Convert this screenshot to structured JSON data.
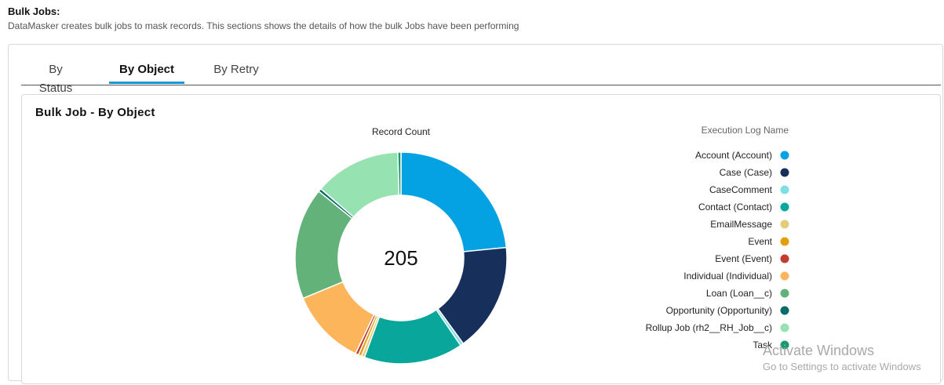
{
  "header": {
    "title": "Bulk Jobs:",
    "description": "DataMasker creates bulk jobs to mask records. This sections shows the details of how the bulk Jobs have been performing"
  },
  "tabs": [
    {
      "label": "By Status",
      "active": false
    },
    {
      "label": "By Object",
      "active": true
    },
    {
      "label": "By Retry",
      "active": false
    }
  ],
  "card": {
    "title": "Bulk Job - By Object"
  },
  "chart_data": {
    "type": "pie",
    "title": "Record Count",
    "center_total": "205",
    "legend_title": "Execution Log Name",
    "legend_position": "right",
    "slices": [
      {
        "label": "Account (Account)",
        "value": 48,
        "color": "#04a2e3"
      },
      {
        "label": "Case (Case)",
        "value": 34,
        "color": "#162f5b"
      },
      {
        "label": "CaseComment",
        "value": 1,
        "color": "#7ddfe1"
      },
      {
        "label": "Contact (Contact)",
        "value": 31,
        "color": "#09a69b"
      },
      {
        "label": "EmailMessage",
        "value": 1,
        "color": "#e3cd79"
      },
      {
        "label": "Event",
        "value": 1,
        "color": "#e39f05"
      },
      {
        "label": "Event (Event)",
        "value": 1,
        "color": "#c13d2f"
      },
      {
        "label": "Individual (Individual)",
        "value": 24,
        "color": "#fcb55b"
      },
      {
        "label": "Loan (Loan__c)",
        "value": 35,
        "color": "#62b27a"
      },
      {
        "label": "Opportunity (Opportunity)",
        "value": 1,
        "color": "#0b6a6a"
      },
      {
        "label": "Rollup Job (rh2__RH_Job__c)",
        "value": 27,
        "color": "#96e3b1"
      },
      {
        "label": "Task",
        "value": 1,
        "color": "#169c6b"
      }
    ]
  },
  "watermark": {
    "line1": "Activate Windows",
    "line2": "Go to Settings to activate Windows"
  }
}
